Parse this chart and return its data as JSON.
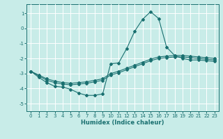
{
  "xlabel": "Humidex (Indice chaleur)",
  "background_color": "#c8ece8",
  "grid_color": "#ffffff",
  "line_color": "#1a7070",
  "xlim": [
    -0.5,
    23.5
  ],
  "ylim": [
    -5.5,
    1.6
  ],
  "yticks": [
    1,
    0,
    -1,
    -2,
    -3,
    -4,
    -5
  ],
  "xticks": [
    0,
    1,
    2,
    3,
    4,
    5,
    6,
    7,
    8,
    9,
    10,
    11,
    12,
    13,
    14,
    15,
    16,
    17,
    18,
    19,
    20,
    21,
    22,
    23
  ],
  "line1_x": [
    0,
    1,
    2,
    3,
    4,
    5,
    6,
    7,
    8,
    9,
    10,
    11,
    12,
    13,
    14,
    15,
    16,
    17,
    18,
    19,
    20,
    21,
    22,
    23
  ],
  "line1_y": [
    -2.85,
    -3.25,
    -3.6,
    -3.85,
    -3.9,
    -4.05,
    -4.3,
    -4.45,
    -4.45,
    -4.35,
    -2.35,
    -2.3,
    -1.35,
    -0.2,
    0.6,
    1.1,
    0.65,
    -1.25,
    -1.8,
    -2.0,
    -2.1,
    -2.1,
    -2.15,
    -2.2
  ],
  "line2_x": [
    0,
    1,
    2,
    3,
    4,
    5,
    6,
    7,
    8,
    9,
    10,
    11,
    12,
    13,
    14,
    15,
    16,
    17,
    18,
    19,
    20,
    21,
    22,
    23
  ],
  "line2_y": [
    -2.85,
    -3.15,
    -3.45,
    -3.6,
    -3.7,
    -3.75,
    -3.7,
    -3.65,
    -3.55,
    -3.45,
    -3.1,
    -2.95,
    -2.75,
    -2.55,
    -2.35,
    -2.15,
    -2.0,
    -1.95,
    -1.9,
    -1.9,
    -1.95,
    -2.0,
    -2.05,
    -2.1
  ],
  "line3_x": [
    0,
    1,
    2,
    3,
    4,
    5,
    6,
    7,
    8,
    9,
    10,
    11,
    12,
    13,
    14,
    15,
    16,
    17,
    18,
    19,
    20,
    21,
    22,
    23
  ],
  "line3_y": [
    -2.85,
    -3.1,
    -3.35,
    -3.5,
    -3.6,
    -3.65,
    -3.6,
    -3.55,
    -3.45,
    -3.35,
    -3.0,
    -2.85,
    -2.65,
    -2.45,
    -2.25,
    -2.05,
    -1.9,
    -1.85,
    -1.8,
    -1.8,
    -1.85,
    -1.9,
    -1.95,
    -2.0
  ]
}
